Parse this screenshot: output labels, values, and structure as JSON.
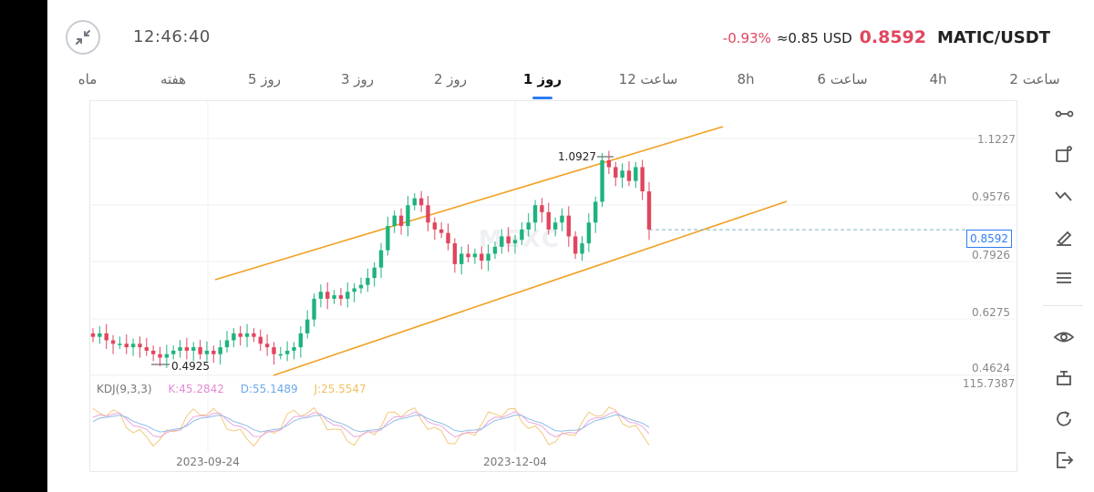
{
  "header": {
    "time": "12:46:40",
    "change": "-0.93%",
    "usd_value": "≈0.85 USD",
    "price": "0.8592",
    "pair": "MATIC/USDT",
    "colors": {
      "down": "#e0465e",
      "up": "#1fb37e",
      "accent": "#2f7cf6",
      "channel": "#f0a020"
    }
  },
  "tabs": [
    {
      "label": "ماه"
    },
    {
      "label": "هفته"
    },
    {
      "label": "5 روز"
    },
    {
      "label": "3 روز"
    },
    {
      "label": "2 روز"
    },
    {
      "label": "1 روز",
      "active": true
    },
    {
      "label": "12 ساعت"
    },
    {
      "label": "8h"
    },
    {
      "label": "6 ساعت"
    },
    {
      "label": "4h"
    },
    {
      "label": "2 ساعت"
    }
  ],
  "chart": {
    "price_axis": [
      "1.1227",
      "0.9576",
      "0.7926",
      "0.6275",
      "0.4624"
    ],
    "current_price_tag": "0.8592",
    "high_annotation": "1.0927",
    "low_annotation": "0.4925",
    "kdj": {
      "title": "KDJ(9,3,3)",
      "k": "K:45.2842",
      "d": "D:55.1489",
      "j": "J:25.5547",
      "axis_top": "115.7387"
    },
    "dates": [
      "2023-09-24",
      "2023-12-04"
    ],
    "watermark": "MEXC"
  },
  "chart_data": {
    "type": "candlestick",
    "series": [
      {
        "name": "MATIC/USDT",
        "values": [
          0.55,
          0.56,
          0.54,
          0.53,
          0.53,
          0.52,
          0.53,
          0.52,
          0.51,
          0.5,
          0.49,
          0.5,
          0.51,
          0.52,
          0.51,
          0.52,
          0.5,
          0.51,
          0.5,
          0.52,
          0.54,
          0.56,
          0.55,
          0.56,
          0.55,
          0.53,
          0.52,
          0.5,
          0.5,
          0.51,
          0.52,
          0.56,
          0.6,
          0.66,
          0.68,
          0.66,
          0.67,
          0.66,
          0.68,
          0.69,
          0.7,
          0.72,
          0.75,
          0.8,
          0.87,
          0.9,
          0.87,
          0.93,
          0.95,
          0.93,
          0.88,
          0.86,
          0.85,
          0.82,
          0.76,
          0.79,
          0.78,
          0.79,
          0.77,
          0.79,
          0.81,
          0.84,
          0.82,
          0.83,
          0.86,
          0.88,
          0.93,
          0.91,
          0.86,
          0.88,
          0.9,
          0.84,
          0.79,
          0.82,
          0.88,
          0.94,
          1.06,
          1.04,
          1.01,
          1.03,
          1.0,
          1.04,
          0.97,
          0.86
        ]
      }
    ],
    "kdj": {
      "k": 45.2842,
      "d": 55.1489,
      "j": 25.5547
    },
    "ylim": [
      0.4624,
      1.1227
    ],
    "x_labels": [
      "2023-09-24",
      "2023-12-04"
    ],
    "current_price": 0.8592
  }
}
